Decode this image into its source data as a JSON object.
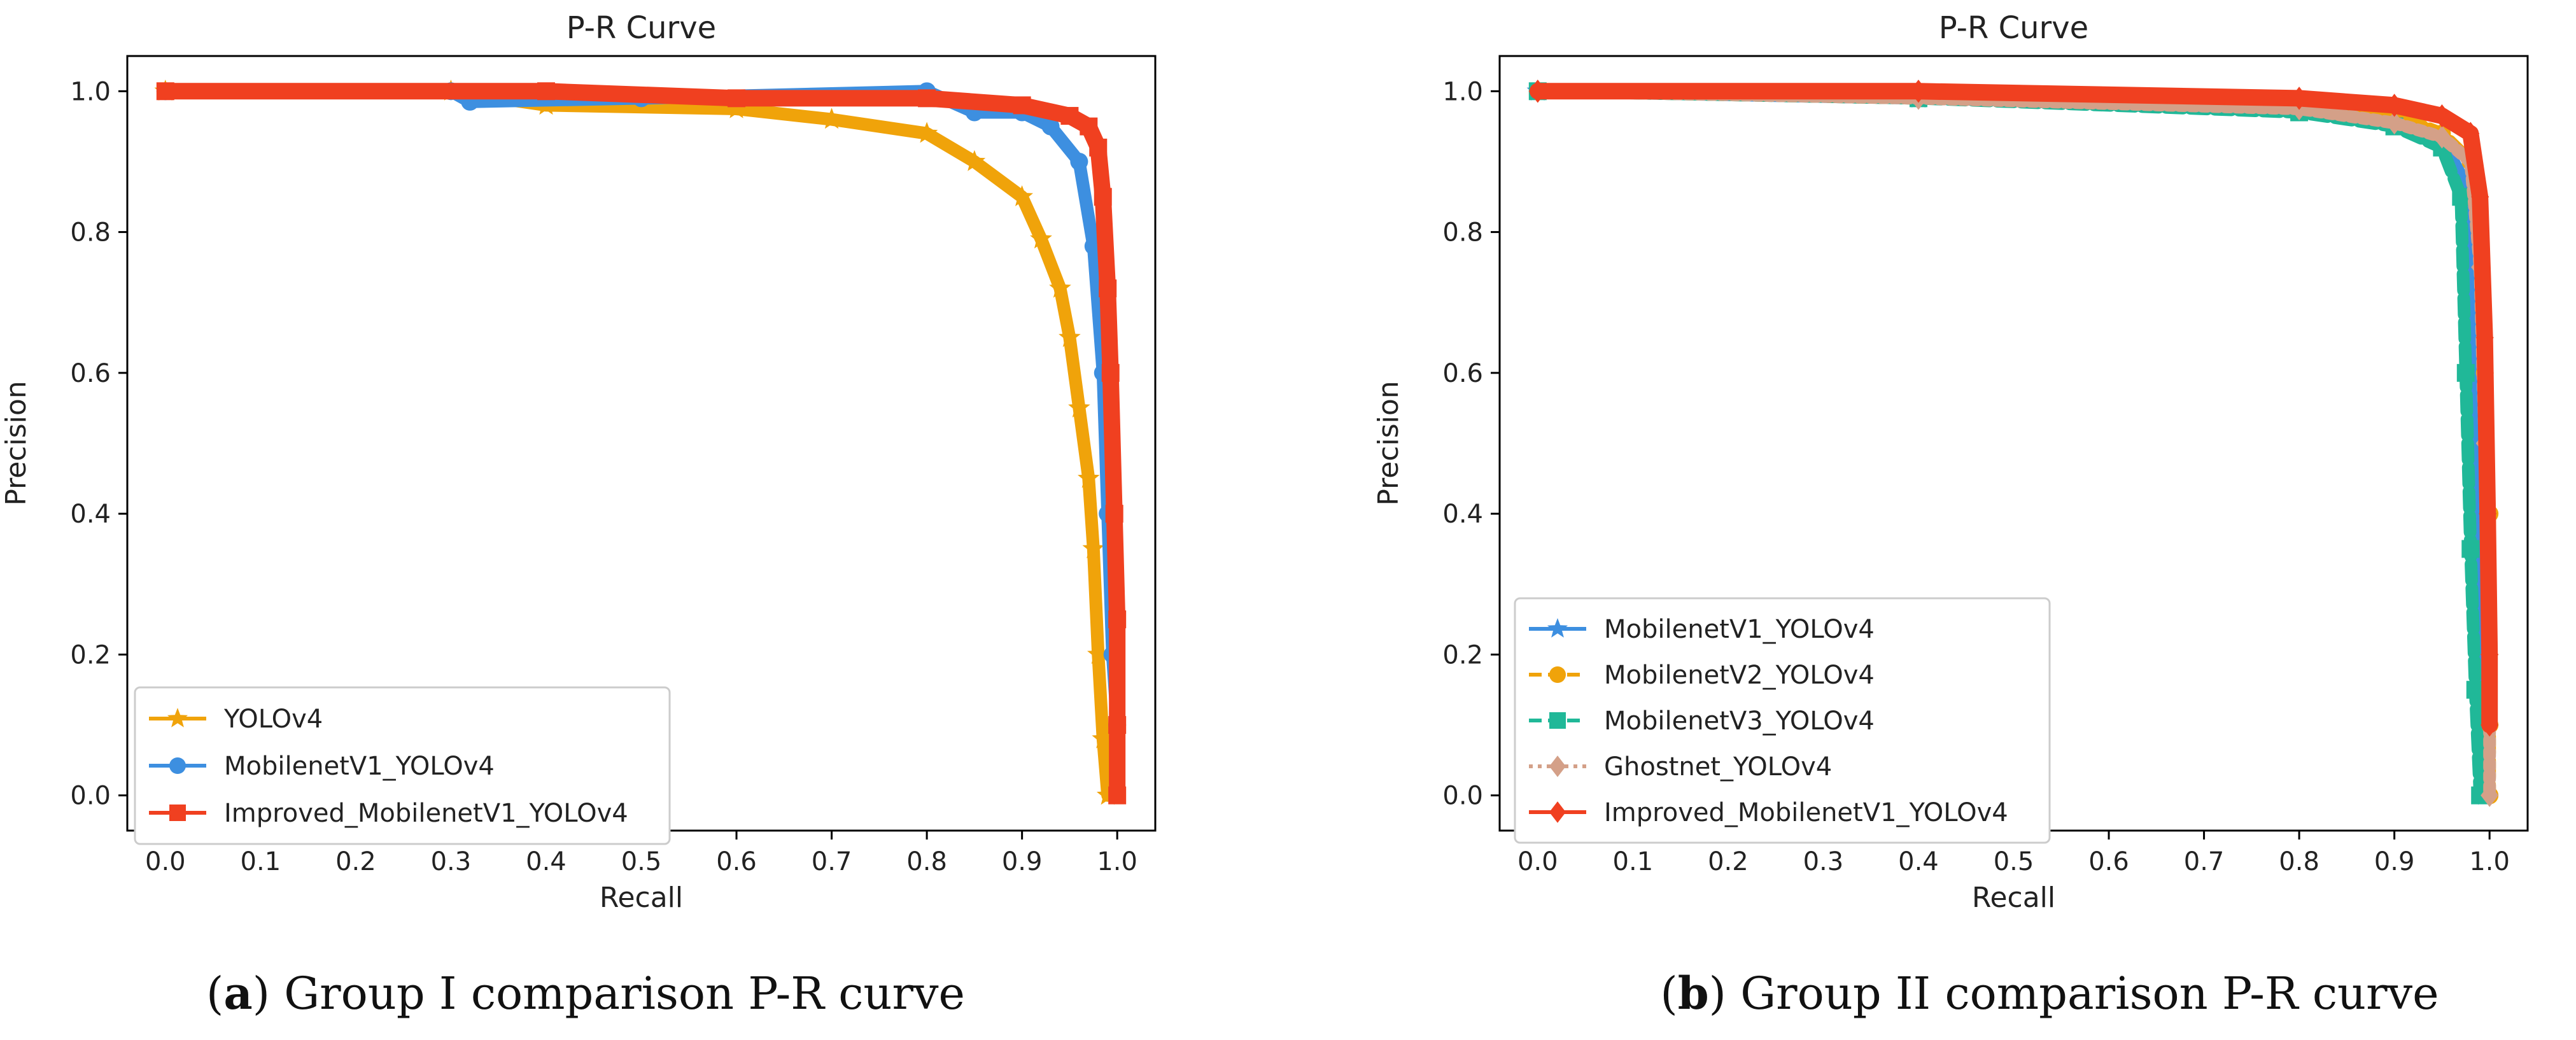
{
  "chart_data": [
    {
      "type": "line",
      "title": "P-R Curve",
      "xlabel": "Recall",
      "ylabel": "Precision",
      "xlim": [
        -0.04,
        1.04
      ],
      "ylim": [
        -0.05,
        1.05
      ],
      "xticks": [
        "0.0",
        "0.1",
        "0.2",
        "0.3",
        "0.4",
        "0.5",
        "0.6",
        "0.7",
        "0.8",
        "0.9",
        "1.0"
      ],
      "yticks": [
        "0.0",
        "0.2",
        "0.4",
        "0.6",
        "0.8",
        "1.0"
      ],
      "grid": false,
      "legend_position": "lower-left",
      "caption_letter": "a",
      "caption_rest": ") Group I comparison P-R curve",
      "series": [
        {
          "name": "YOLOv4",
          "color": "#f0a30a",
          "marker": "star",
          "dash": "solid",
          "points": [
            [
              0,
              1.0
            ],
            [
              0.3,
              1.0
            ],
            [
              0.4,
              0.98
            ],
            [
              0.6,
              0.975
            ],
            [
              0.7,
              0.96
            ],
            [
              0.8,
              0.94
            ],
            [
              0.85,
              0.9
            ],
            [
              0.9,
              0.85
            ],
            [
              0.92,
              0.79
            ],
            [
              0.94,
              0.72
            ],
            [
              0.95,
              0.65
            ],
            [
              0.96,
              0.55
            ],
            [
              0.97,
              0.45
            ],
            [
              0.975,
              0.35
            ],
            [
              0.98,
              0.2
            ],
            [
              0.985,
              0.08
            ],
            [
              0.99,
              0.0
            ]
          ]
        },
        {
          "name": "MobilenetV1_YOLOv4",
          "color": "#3d8fe0",
          "marker": "circle",
          "dash": "solid",
          "points": [
            [
              0,
              1.0
            ],
            [
              0.3,
              1.0
            ],
            [
              0.32,
              0.985
            ],
            [
              0.5,
              0.99
            ],
            [
              0.8,
              1.0
            ],
            [
              0.85,
              0.97
            ],
            [
              0.9,
              0.97
            ],
            [
              0.93,
              0.95
            ],
            [
              0.96,
              0.9
            ],
            [
              0.975,
              0.78
            ],
            [
              0.985,
              0.6
            ],
            [
              0.99,
              0.4
            ],
            [
              0.995,
              0.2
            ],
            [
              1.0,
              0.1
            ]
          ]
        },
        {
          "name": "Improved_MobilenetV1_YOLOv4",
          "color": "#f04020",
          "marker": "square",
          "dash": "solid",
          "points": [
            [
              0,
              1.0
            ],
            [
              0.4,
              1.0
            ],
            [
              0.6,
              0.99
            ],
            [
              0.8,
              0.99
            ],
            [
              0.9,
              0.98
            ],
            [
              0.95,
              0.965
            ],
            [
              0.97,
              0.95
            ],
            [
              0.98,
              0.92
            ],
            [
              0.985,
              0.85
            ],
            [
              0.99,
              0.72
            ],
            [
              0.993,
              0.6
            ],
            [
              0.997,
              0.4
            ],
            [
              1.0,
              0.25
            ],
            [
              1.0,
              0.1
            ],
            [
              1.0,
              0.0
            ]
          ]
        }
      ]
    },
    {
      "type": "line",
      "title": "P-R Curve",
      "xlabel": "Recall",
      "ylabel": "Precision",
      "xlim": [
        -0.04,
        1.04
      ],
      "ylim": [
        -0.05,
        1.05
      ],
      "xticks": [
        "0.0",
        "0.1",
        "0.2",
        "0.3",
        "0.4",
        "0.5",
        "0.6",
        "0.7",
        "0.8",
        "0.9",
        "1.0"
      ],
      "yticks": [
        "0.0",
        "0.2",
        "0.4",
        "0.6",
        "0.8",
        "1.0"
      ],
      "grid": false,
      "legend_position": "lower-left",
      "caption_letter": "b",
      "caption_rest": ") Group II comparison P-R curve",
      "series": [
        {
          "name": "MobilenetV1_YOLOv4",
          "color": "#3d8fe0",
          "marker": "star",
          "dash": "solid",
          "points": [
            [
              0,
              1.0
            ],
            [
              0.4,
              0.99
            ],
            [
              0.8,
              0.98
            ],
            [
              0.9,
              0.96
            ],
            [
              0.95,
              0.93
            ],
            [
              0.97,
              0.88
            ],
            [
              0.98,
              0.7
            ],
            [
              0.985,
              0.45
            ],
            [
              0.99,
              0.2
            ],
            [
              0.995,
              0.0
            ]
          ]
        },
        {
          "name": "MobilenetV2_YOLOv4",
          "color": "#f0a30a",
          "marker": "circle",
          "dash": "dashed",
          "points": [
            [
              0,
              1.0
            ],
            [
              0.4,
              0.99
            ],
            [
              0.8,
              0.98
            ],
            [
              0.9,
              0.965
            ],
            [
              0.95,
              0.94
            ],
            [
              0.98,
              0.9
            ],
            [
              0.99,
              0.8
            ],
            [
              0.995,
              0.6
            ],
            [
              1.0,
              0.4
            ],
            [
              1.0,
              0.1
            ],
            [
              1.0,
              0.0
            ]
          ]
        },
        {
          "name": "MobilenetV3_YOLOv4",
          "color": "#20b898",
          "marker": "square",
          "dash": "dashed",
          "points": [
            [
              0,
              1.0
            ],
            [
              0.4,
              0.99
            ],
            [
              0.8,
              0.97
            ],
            [
              0.9,
              0.95
            ],
            [
              0.95,
              0.92
            ],
            [
              0.97,
              0.85
            ],
            [
              0.975,
              0.6
            ],
            [
              0.98,
              0.35
            ],
            [
              0.985,
              0.15
            ],
            [
              0.99,
              0.0
            ]
          ]
        },
        {
          "name": "Ghostnet_YOLOv4",
          "color": "#d4a088",
          "marker": "diamond",
          "dash": "dotted",
          "points": [
            [
              0,
              1.0
            ],
            [
              0.4,
              0.99
            ],
            [
              0.8,
              0.975
            ],
            [
              0.9,
              0.955
            ],
            [
              0.95,
              0.935
            ],
            [
              0.98,
              0.9
            ],
            [
              0.99,
              0.75
            ],
            [
              0.995,
              0.5
            ],
            [
              1.0,
              0.2
            ],
            [
              1.0,
              0.0
            ]
          ]
        },
        {
          "name": "Improved_MobilenetV1_YOLOv4",
          "color": "#f04020",
          "marker": "diamond",
          "dash": "solid",
          "points": [
            [
              0,
              1.0
            ],
            [
              0.4,
              1.0
            ],
            [
              0.8,
              0.99
            ],
            [
              0.9,
              0.98
            ],
            [
              0.95,
              0.965
            ],
            [
              0.98,
              0.94
            ],
            [
              0.99,
              0.85
            ],
            [
              0.995,
              0.65
            ],
            [
              0.998,
              0.4
            ],
            [
              1.0,
              0.2
            ],
            [
              1.0,
              0.1
            ]
          ]
        }
      ]
    }
  ]
}
